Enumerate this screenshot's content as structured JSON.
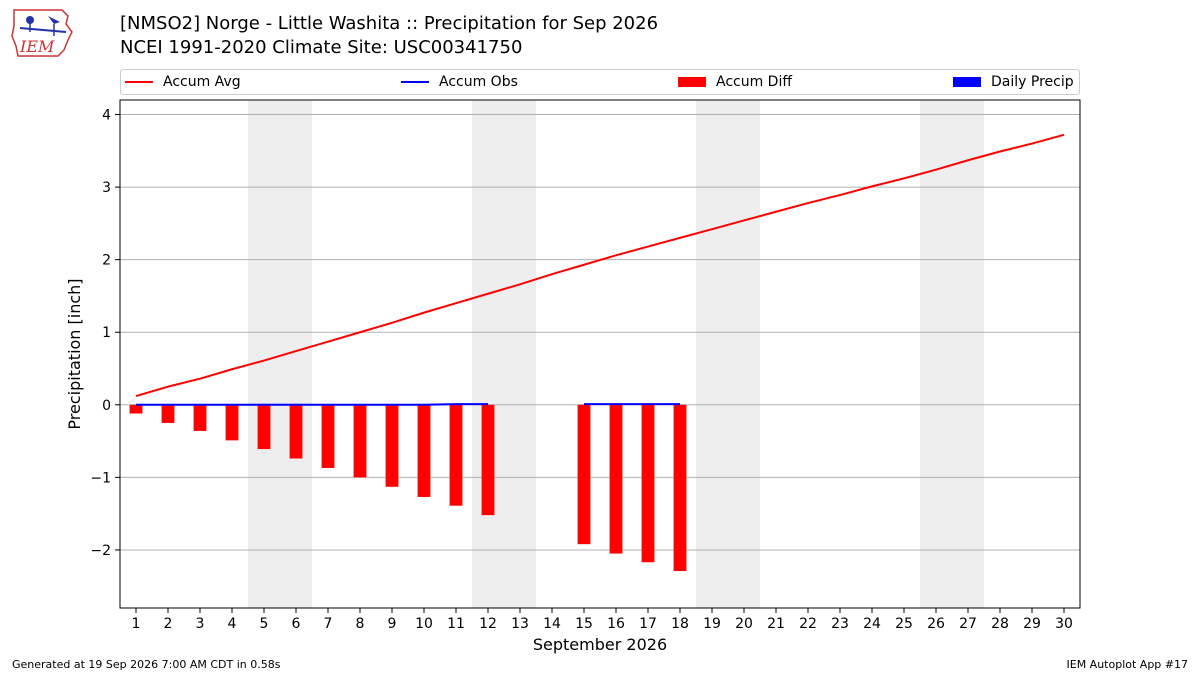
{
  "header": {
    "title_line1": "[NMSO2] Norge - Little Washita :: Precipitation for Sep 2026",
    "title_line2": "NCEI 1991-2020 Climate Site: USC00341750"
  },
  "logo": {
    "text": "IEM",
    "icon": "iem-iowa-logo"
  },
  "footer": {
    "generated": "Generated at 19 Sep 2026 7:00 AM CDT in 0.58s",
    "app": "IEM Autoplot App #17"
  },
  "chart_data": {
    "type": "line",
    "title": "[NMSO2] Norge - Little Washita :: Precipitation for Sep 2026",
    "xlabel": "September 2026",
    "ylabel": "Precipitation [inch]",
    "xlim": [
      0.5,
      30.5
    ],
    "ylim": [
      -2.8,
      4.2
    ],
    "yticks": [
      -2,
      -1,
      0,
      1,
      2,
      3,
      4
    ],
    "ytick_labels": [
      "−2",
      "−1",
      "0",
      "1",
      "2",
      "3",
      "4"
    ],
    "xticks": [
      1,
      2,
      3,
      4,
      5,
      6,
      7,
      8,
      9,
      10,
      11,
      12,
      13,
      14,
      15,
      16,
      17,
      18,
      19,
      20,
      21,
      22,
      23,
      24,
      25,
      26,
      27,
      28,
      29,
      30
    ],
    "grid": "horizontal",
    "legend_position": "top",
    "weekend_shading": [
      [
        4.5,
        6.5
      ],
      [
        11.5,
        13.5
      ],
      [
        18.5,
        20.5
      ],
      [
        25.5,
        27.5
      ]
    ],
    "colors": {
      "avg": "#ff0000",
      "obs": "#0000ff",
      "diff": "#ff0000",
      "daily": "#0000ff",
      "shade": "#eeeeee",
      "grid": "#b0b0b0"
    },
    "series": [
      {
        "name": "Accum Avg",
        "kind": "line",
        "x": [
          1,
          2,
          3,
          4,
          5,
          6,
          7,
          8,
          9,
          10,
          11,
          12,
          13,
          14,
          15,
          16,
          17,
          18,
          19,
          20,
          21,
          22,
          23,
          24,
          25,
          26,
          27,
          28,
          29,
          30
        ],
        "values": [
          0.12,
          0.25,
          0.36,
          0.49,
          0.61,
          0.74,
          0.87,
          1.0,
          1.13,
          1.27,
          1.4,
          1.53,
          1.66,
          1.8,
          1.93,
          2.06,
          2.18,
          2.3,
          2.42,
          2.54,
          2.66,
          2.78,
          2.89,
          3.01,
          3.12,
          3.24,
          3.37,
          3.49,
          3.6,
          3.72
        ]
      },
      {
        "name": "Accum Obs",
        "kind": "line",
        "x": [
          1,
          2,
          3,
          4,
          5,
          6,
          7,
          8,
          9,
          10,
          11,
          12
        ],
        "values": [
          0,
          0,
          0,
          0,
          0,
          0,
          0,
          0,
          0,
          0,
          0.01,
          0.01
        ],
        "x2": [
          15,
          16,
          17,
          18
        ],
        "values2": [
          0.01,
          0.01,
          0.01,
          0.01
        ]
      },
      {
        "name": "Accum Diff",
        "kind": "bar",
        "x": [
          1,
          2,
          3,
          4,
          5,
          6,
          7,
          8,
          9,
          10,
          11,
          12,
          15,
          16,
          17,
          18
        ],
        "values": [
          -0.12,
          -0.25,
          -0.36,
          -0.49,
          -0.61,
          -0.74,
          -0.87,
          -1.0,
          -1.13,
          -1.27,
          -1.39,
          -1.52,
          -1.92,
          -2.05,
          -2.17,
          -2.29
        ]
      },
      {
        "name": "Daily Precip",
        "kind": "bar",
        "x": [
          11
        ],
        "values": [
          0.01
        ]
      }
    ]
  }
}
